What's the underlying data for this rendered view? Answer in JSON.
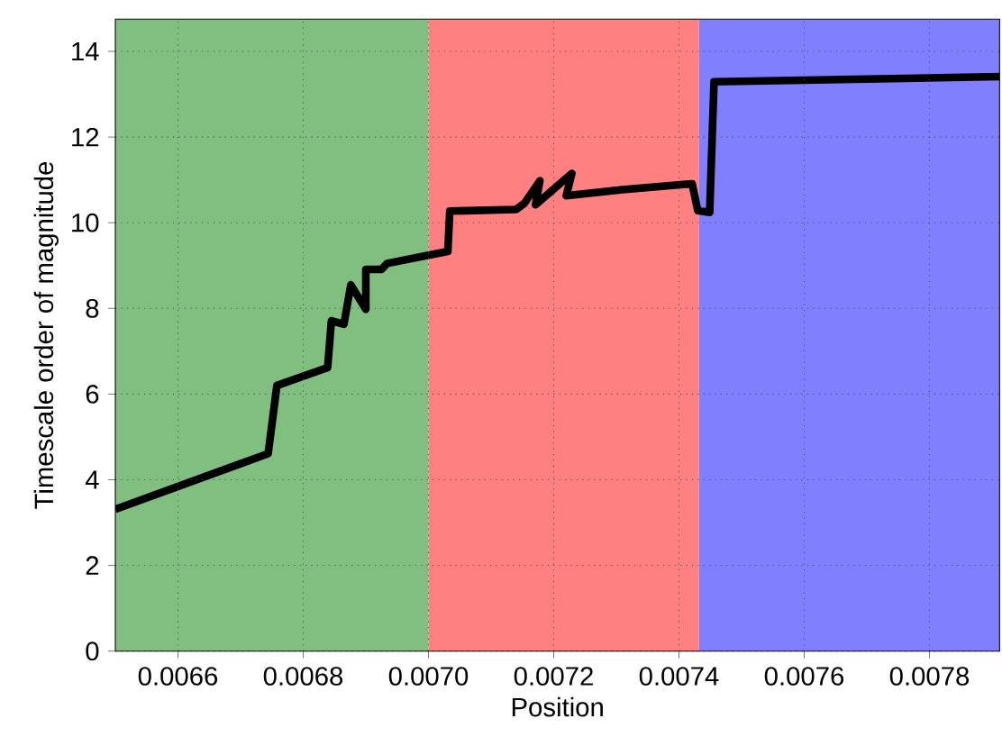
{
  "chart_data": {
    "type": "line",
    "xlabel": "Position",
    "ylabel": "Timescale order of magnitude",
    "x": [
      0.0065,
      0.006744,
      0.006758,
      0.006839,
      0.006845,
      0.006865,
      0.006876,
      0.0069,
      0.0069,
      0.006925,
      0.006934,
      0.007031,
      0.007034,
      0.00714,
      0.007153,
      0.007178,
      0.007171,
      0.007229,
      0.00722,
      0.00731,
      0.007421,
      0.00743,
      0.007449,
      0.007456,
      0.007912
    ],
    "series": [
      {
        "color": "#000000",
        "values": [
          3.31,
          4.61,
          6.2,
          6.62,
          7.71,
          7.63,
          8.55,
          7.98,
          8.91,
          8.91,
          9.05,
          9.33,
          10.27,
          10.31,
          10.45,
          10.98,
          10.42,
          11.15,
          10.63,
          10.77,
          10.91,
          10.28,
          10.24,
          13.29,
          13.41
        ]
      }
    ],
    "xlim": [
      0.0065,
      0.007912
    ],
    "ylim": [
      0,
      14.75
    ],
    "xticks": [
      {
        "value": 0.0066,
        "label": "0.0066"
      },
      {
        "value": 0.0068,
        "label": "0.0068"
      },
      {
        "value": 0.007,
        "label": "0.0070"
      },
      {
        "value": 0.0072,
        "label": "0.0072"
      },
      {
        "value": 0.0074,
        "label": "0.0074"
      },
      {
        "value": 0.0076,
        "label": "0.0076"
      },
      {
        "value": 0.0078,
        "label": "0.0078"
      }
    ],
    "yticks": [
      0,
      2,
      4,
      6,
      8,
      10,
      12,
      14
    ],
    "bands": [
      {
        "axis": "x",
        "from": 0.0065,
        "to": 0.007,
        "color": "#80bf80"
      },
      {
        "axis": "x",
        "from": 0.007,
        "to": 0.007432,
        "color": "#ff8080"
      },
      {
        "axis": "x",
        "from": 0.007432,
        "to": 0.007912,
        "color": "#8080ff"
      }
    ],
    "grid": true,
    "marker": "none",
    "line_style": "solid"
  }
}
